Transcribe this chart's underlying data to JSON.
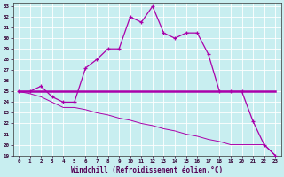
{
  "xlabel": "Windchill (Refroidissement éolien,°C)",
  "bg_color": "#c8eef0",
  "line_color": "#aa00aa",
  "grid_color": "#aadddd",
  "xlim": [
    -0.5,
    23.5
  ],
  "ylim": [
    19,
    33.3
  ],
  "xticks": [
    0,
    1,
    2,
    3,
    4,
    5,
    6,
    7,
    8,
    9,
    10,
    11,
    12,
    13,
    14,
    15,
    16,
    17,
    18,
    19,
    20,
    21,
    22,
    23
  ],
  "yticks": [
    19,
    20,
    21,
    22,
    23,
    24,
    25,
    26,
    27,
    28,
    29,
    30,
    31,
    32,
    33
  ],
  "curve1_x": [
    0,
    1,
    2,
    3,
    4,
    5,
    6,
    7,
    8,
    9,
    10,
    11,
    12,
    13,
    14,
    15,
    16,
    17,
    18,
    19,
    20,
    21,
    22,
    23
  ],
  "curve1_y": [
    25.0,
    25.0,
    25.5,
    24.5,
    24.0,
    24.0,
    27.2,
    28.0,
    29.0,
    29.0,
    32.0,
    31.5,
    33.0,
    30.5,
    30.0,
    30.5,
    30.5,
    28.5,
    25.0,
    25.0,
    25.0,
    22.2,
    20.0,
    19.0
  ],
  "curve2_x": [
    0,
    1,
    2,
    3,
    4,
    5,
    6,
    7,
    8,
    9,
    10,
    11,
    12,
    13,
    14,
    15,
    16,
    17,
    18,
    19,
    20,
    21,
    22,
    23
  ],
  "curve2_y": [
    25.0,
    25.0,
    25.0,
    25.0,
    25.0,
    25.0,
    25.0,
    25.0,
    25.0,
    25.0,
    25.0,
    25.0,
    25.0,
    25.0,
    25.0,
    25.0,
    25.0,
    25.0,
    25.0,
    25.0,
    25.0,
    25.0,
    25.0,
    25.0
  ],
  "curve3_x": [
    0,
    1,
    2,
    3,
    4,
    5,
    6,
    7,
    8,
    9,
    10,
    11,
    12,
    13,
    14,
    15,
    16,
    17,
    18,
    19,
    20,
    21,
    22,
    23
  ],
  "curve3_y": [
    25.0,
    24.8,
    24.5,
    24.0,
    23.5,
    23.5,
    23.3,
    23.0,
    22.8,
    22.5,
    22.3,
    22.0,
    21.8,
    21.5,
    21.3,
    21.0,
    20.8,
    20.5,
    20.3,
    20.0,
    20.0,
    20.0,
    20.0,
    19.0
  ]
}
